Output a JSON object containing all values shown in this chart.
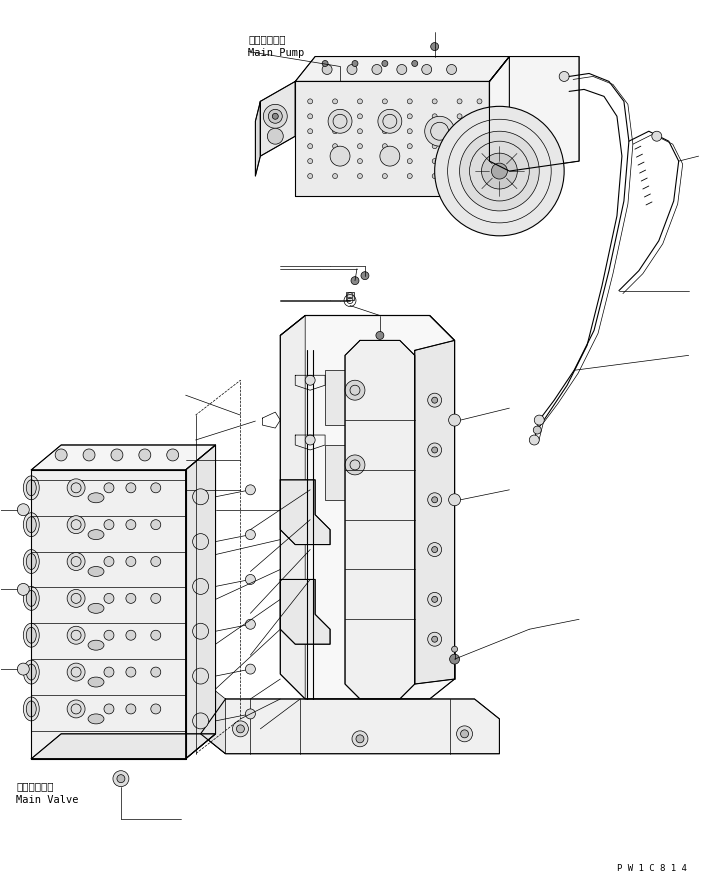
{
  "background_color": "#ffffff",
  "line_color": "#000000",
  "figure_width": 7.02,
  "figure_height": 8.83,
  "dpi": 100,
  "watermark": "P W 1 C 8 1 4",
  "label_main_pump_jp": "メインポンプ",
  "label_main_pump_en": "Main Pump",
  "label_main_valve_jp": "メインバルブ",
  "label_main_valve_en": "Main Valve",
  "font_size_label": 7.5,
  "font_size_watermark": 6.5
}
